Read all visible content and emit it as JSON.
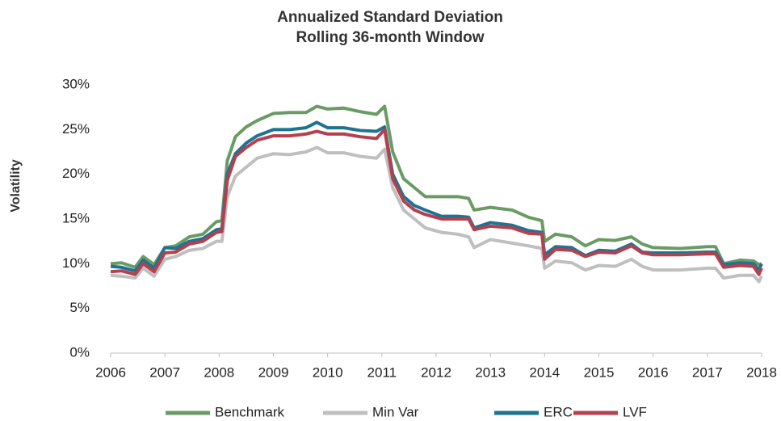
{
  "chart_data": {
    "type": "line",
    "title": "Annualized Standard Deviation",
    "subtitle": "Rolling 36-month Window",
    "y_label": "Volatility",
    "x": [
      2006.0,
      2006.2,
      2006.45,
      2006.6,
      2006.8,
      2007.0,
      2007.2,
      2007.45,
      2007.7,
      2007.95,
      2008.05,
      2008.15,
      2008.3,
      2008.5,
      2008.7,
      2009.0,
      2009.3,
      2009.6,
      2009.8,
      2010.0,
      2010.3,
      2010.6,
      2010.9,
      2011.05,
      2011.2,
      2011.4,
      2011.6,
      2011.8,
      2012.1,
      2012.4,
      2012.6,
      2012.7,
      2013.0,
      2013.4,
      2013.7,
      2013.95,
      2014.0,
      2014.2,
      2014.5,
      2014.75,
      2015.0,
      2015.3,
      2015.6,
      2015.8,
      2016.0,
      2016.5,
      2017.0,
      2017.15,
      2017.3,
      2017.6,
      2017.85,
      2017.95,
      2018.0
    ],
    "series": [
      {
        "name": "Benchmark",
        "color": "#6a9b64",
        "values": [
          10.0,
          10.1,
          9.6,
          10.8,
          9.9,
          11.8,
          12.0,
          13.0,
          13.3,
          14.7,
          14.8,
          21.5,
          24.2,
          25.3,
          26.0,
          26.8,
          26.9,
          26.9,
          27.6,
          27.3,
          27.4,
          27.0,
          26.7,
          27.6,
          22.5,
          19.5,
          18.5,
          17.5,
          17.5,
          17.5,
          17.3,
          16.0,
          16.3,
          16.0,
          15.2,
          14.8,
          12.5,
          13.3,
          13.0,
          12.0,
          12.7,
          12.6,
          13.0,
          12.2,
          11.8,
          11.7,
          11.9,
          11.9,
          10.0,
          10.4,
          10.3,
          9.9,
          10.0
        ]
      },
      {
        "name": "Min Var",
        "color": "#bfbfbf",
        "values": [
          8.7,
          8.6,
          8.4,
          9.5,
          8.6,
          10.5,
          10.8,
          11.5,
          11.7,
          12.5,
          12.5,
          17.5,
          19.8,
          20.8,
          21.8,
          22.3,
          22.2,
          22.5,
          23.0,
          22.4,
          22.4,
          22.0,
          21.8,
          22.8,
          18.5,
          16.0,
          15.0,
          14.0,
          13.5,
          13.3,
          13.0,
          11.8,
          12.7,
          12.3,
          12.0,
          11.7,
          9.5,
          10.3,
          10.1,
          9.3,
          9.8,
          9.7,
          10.5,
          9.7,
          9.3,
          9.3,
          9.5,
          9.5,
          8.4,
          8.7,
          8.7,
          8.0,
          8.6
        ]
      },
      {
        "name": "ERC",
        "color": "#1f7391",
        "values": [
          9.7,
          9.6,
          9.2,
          10.4,
          9.5,
          11.8,
          11.7,
          12.5,
          12.8,
          13.8,
          13.9,
          20.0,
          22.3,
          23.5,
          24.3,
          25.0,
          25.0,
          25.2,
          25.8,
          25.2,
          25.2,
          24.9,
          24.8,
          25.3,
          20.0,
          17.5,
          16.5,
          16.0,
          15.3,
          15.3,
          15.2,
          14.0,
          14.6,
          14.3,
          13.7,
          13.5,
          11.0,
          11.9,
          11.8,
          10.9,
          11.5,
          11.4,
          12.2,
          11.3,
          11.2,
          11.2,
          11.3,
          11.3,
          9.9,
          10.1,
          10.0,
          9.3,
          10.0
        ]
      },
      {
        "name": "LVF",
        "color": "#b5404e",
        "values": [
          9.1,
          9.2,
          8.8,
          10.0,
          9.1,
          11.2,
          11.3,
          12.2,
          12.5,
          13.5,
          13.6,
          19.3,
          22.0,
          23.0,
          23.8,
          24.3,
          24.3,
          24.5,
          24.8,
          24.5,
          24.5,
          24.2,
          24.0,
          25.0,
          19.5,
          17.0,
          16.0,
          15.5,
          15.0,
          15.0,
          15.0,
          13.8,
          14.2,
          14.0,
          13.4,
          13.3,
          10.5,
          11.6,
          11.5,
          10.8,
          11.3,
          11.2,
          12.0,
          11.2,
          11.0,
          11.0,
          11.1,
          11.1,
          9.6,
          9.8,
          9.7,
          8.8,
          9.5
        ]
      }
    ],
    "xlim": [
      2006,
      2018
    ],
    "xticks": [
      2006,
      2007,
      2008,
      2009,
      2010,
      2011,
      2012,
      2013,
      2014,
      2015,
      2016,
      2017,
      2018
    ],
    "ylim": [
      0,
      30
    ],
    "yticks": [
      {
        "value": 0,
        "label": "0%"
      },
      {
        "value": 5,
        "label": "5%"
      },
      {
        "value": 10,
        "label": "10%"
      },
      {
        "value": 15,
        "label": "15%"
      },
      {
        "value": 20,
        "label": "20%"
      },
      {
        "value": 25,
        "label": "25%"
      },
      {
        "value": 30,
        "label": "30%"
      }
    ],
    "grid": false,
    "legend": "bottom"
  }
}
